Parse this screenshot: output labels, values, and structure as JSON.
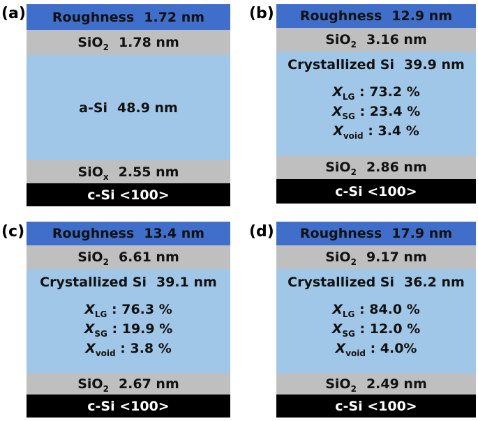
{
  "panels": [
    {
      "id": "a",
      "label": "(a)",
      "roughness": {
        "name": "Roughness",
        "value": "1.72 nm"
      },
      "top_oxide": {
        "name": "SiO",
        "sub": "2",
        "value": "1.78 nm"
      },
      "film": {
        "name": "a-Si",
        "value": "48.9 nm"
      },
      "bottom_oxide": {
        "name": "SiO",
        "sub": "x",
        "value": "2.55 nm"
      },
      "substrate": "c-Si <100>"
    },
    {
      "id": "b",
      "label": "(b)",
      "roughness": {
        "name": "Roughness",
        "value": "12.9 nm"
      },
      "top_oxide": {
        "name": "SiO",
        "sub": "2",
        "value": "3.16 nm"
      },
      "film": {
        "name": "Crystallized Si",
        "value": "39.9 nm",
        "fractions": [
          {
            "symbol": "X",
            "sub": "LG",
            "value": ": 73.2 %"
          },
          {
            "symbol": "X",
            "sub": "SG",
            "value": ": 23.4 %"
          },
          {
            "symbol": "X",
            "sub": "void",
            "value": ": 3.4 %"
          }
        ]
      },
      "bottom_oxide": {
        "name": "SiO",
        "sub": "2",
        "value": "2.86 nm"
      },
      "substrate": "c-Si <100>"
    },
    {
      "id": "c",
      "label": "(c)",
      "roughness": {
        "name": "Roughness",
        "value": "13.4 nm"
      },
      "top_oxide": {
        "name": "SiO",
        "sub": "2",
        "value": "6.61 nm"
      },
      "film": {
        "name": "Crystallized Si",
        "value": "39.1 nm",
        "fractions": [
          {
            "symbol": "X",
            "sub": "LG",
            "value": ": 76.3 %"
          },
          {
            "symbol": "X",
            "sub": "SG",
            "value": ": 19.9 %"
          },
          {
            "symbol": "X",
            "sub": "void",
            "value": ": 3.8 %"
          }
        ]
      },
      "bottom_oxide": {
        "name": "SiO",
        "sub": "2",
        "value": "2.67 nm"
      },
      "substrate": "c-Si <100>"
    },
    {
      "id": "d",
      "label": "(d)",
      "roughness": {
        "name": "Roughness",
        "value": "17.9 nm"
      },
      "top_oxide": {
        "name": "SiO",
        "sub": "2",
        "value": "9.17 nm"
      },
      "film": {
        "name": "Crystallized Si",
        "value": "36.2 nm",
        "fractions": [
          {
            "symbol": "X",
            "sub": "LG",
            "value": ": 84.0 %"
          },
          {
            "symbol": "X",
            "sub": "SG",
            "value": ": 12.0 %"
          },
          {
            "symbol": "X",
            "sub": "void",
            "value": ": 4.0%"
          }
        ]
      },
      "bottom_oxide": {
        "name": "SiO",
        "sub": "2",
        "value": "2.49 nm"
      },
      "substrate": "c-Si <100>"
    }
  ],
  "colors": {
    "roughness": "#3f6fca",
    "oxide": "#bfbfbf",
    "silicon": "#a1c7e8",
    "substrate": "#000000"
  }
}
